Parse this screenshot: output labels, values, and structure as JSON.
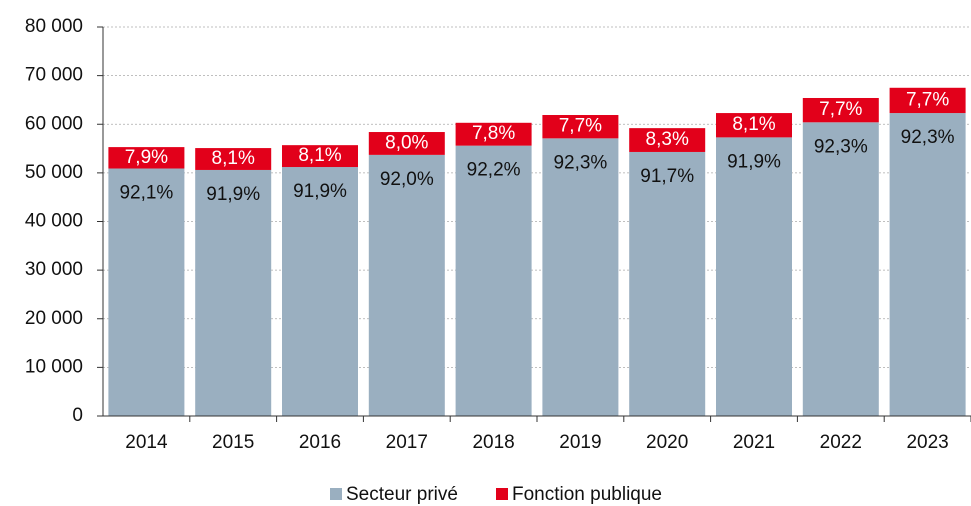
{
  "chart_data": {
    "type": "stacked_bar",
    "categories": [
      "2014",
      "2015",
      "2016",
      "2017",
      "2018",
      "2019",
      "2020",
      "2021",
      "2022",
      "2023"
    ],
    "series": [
      {
        "name": "Secteur privé",
        "color": "#9aafc0",
        "values": [
          50900,
          50600,
          51200,
          53700,
          55600,
          57100,
          54300,
          57300,
          60400,
          62300
        ],
        "labels": [
          "92,1%",
          "91,9%",
          "91,9%",
          "92,0%",
          "92,2%",
          "92,3%",
          "91,7%",
          "91,9%",
          "92,3%",
          "92,3%"
        ]
      },
      {
        "name": "Fonction publique",
        "color": "#e2001a",
        "values": [
          4400,
          4500,
          4500,
          4700,
          4700,
          4800,
          4900,
          5000,
          5000,
          5200
        ],
        "labels": [
          "7,9%",
          "8,1%",
          "8,1%",
          "8,0%",
          "7,8%",
          "7,7%",
          "8,3%",
          "8,1%",
          "7,7%",
          "7,7%"
        ]
      }
    ],
    "ylim": [
      0,
      80000
    ],
    "yticks": [
      0,
      {
        "value": 10000,
        "label": "10 000"
      },
      {
        "value": 20000,
        "label": "20 000"
      },
      {
        "value": 30000,
        "label": "30 000"
      },
      {
        "value": 40000,
        "label": "40 000"
      },
      {
        "value": 50000,
        "label": "50 000"
      },
      {
        "value": 60000,
        "label": "60 000"
      },
      {
        "value": 70000,
        "label": "70 000"
      },
      {
        "value": 80000,
        "label": "80 000"
      }
    ],
    "grid": true,
    "legend": "bottom"
  }
}
